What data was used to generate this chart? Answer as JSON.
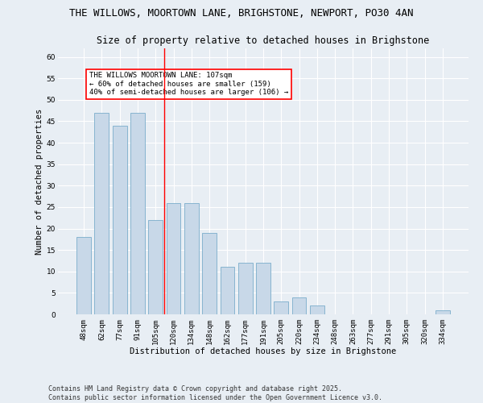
{
  "title_line1": "THE WILLOWS, MOORTOWN LANE, BRIGHSTONE, NEWPORT, PO30 4AN",
  "title_line2": "Size of property relative to detached houses in Brighstone",
  "xlabel": "Distribution of detached houses by size in Brighstone",
  "ylabel": "Number of detached properties",
  "categories": [
    "48sqm",
    "62sqm",
    "77sqm",
    "91sqm",
    "105sqm",
    "120sqm",
    "134sqm",
    "148sqm",
    "162sqm",
    "177sqm",
    "191sqm",
    "205sqm",
    "220sqm",
    "234sqm",
    "248sqm",
    "263sqm",
    "277sqm",
    "291sqm",
    "305sqm",
    "320sqm",
    "334sqm"
  ],
  "values": [
    18,
    47,
    44,
    47,
    22,
    26,
    26,
    19,
    11,
    12,
    12,
    3,
    4,
    2,
    0,
    0,
    0,
    0,
    0,
    0,
    1
  ],
  "bar_color": "#c8d8e8",
  "bar_edgecolor": "#7aadcb",
  "bar_width": 0.8,
  "ylim": [
    0,
    62
  ],
  "yticks": [
    0,
    5,
    10,
    15,
    20,
    25,
    30,
    35,
    40,
    45,
    50,
    55,
    60
  ],
  "redline_x": 4.5,
  "annotation_text": "THE WILLOWS MOORTOWN LANE: 107sqm\n← 60% of detached houses are smaller (159)\n40% of semi-detached houses are larger (106) →",
  "annotation_box_color": "white",
  "annotation_box_edgecolor": "red",
  "redline_color": "red",
  "background_color": "#e8eef4",
  "plot_background": "#e8eef4",
  "footer_line1": "Contains HM Land Registry data © Crown copyright and database right 2025.",
  "footer_line2": "Contains public sector information licensed under the Open Government Licence v3.0.",
  "title_fontsize": 9,
  "title2_fontsize": 8.5,
  "axis_label_fontsize": 7.5,
  "tick_fontsize": 6.5,
  "annotation_fontsize": 6.5,
  "footer_fontsize": 6
}
